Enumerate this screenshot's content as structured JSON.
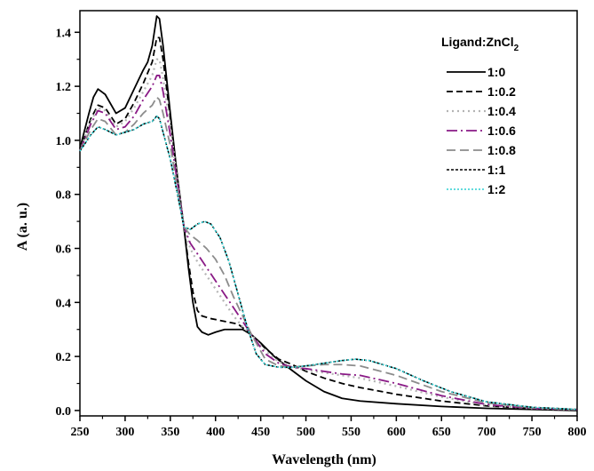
{
  "chart_data": {
    "type": "line",
    "title": "",
    "xlabel": "Wavelength (nm)",
    "ylabel": "A (a. u.)",
    "xlim": [
      250,
      800
    ],
    "ylim": [
      -0.02,
      1.48
    ],
    "xticks": [
      "250",
      "300",
      "350",
      "400",
      "450",
      "500",
      "550",
      "600",
      "650",
      "700",
      "750",
      "800"
    ],
    "yticks": [
      "0.0",
      "0.2",
      "0.4",
      "0.6",
      "0.8",
      "1.0",
      "1.2",
      "1.4"
    ],
    "grid": false,
    "legend_title_main": "Ligand:ZnCl",
    "legend_title_sub": "2",
    "legend_placement": "top-right",
    "series": [
      {
        "name": "1:0",
        "color": "#000000",
        "dash": "",
        "width": 1.8,
        "points": [
          [
            250,
            0.97
          ],
          [
            260,
            1.1
          ],
          [
            265,
            1.16
          ],
          [
            270,
            1.19
          ],
          [
            278,
            1.17
          ],
          [
            290,
            1.1
          ],
          [
            300,
            1.12
          ],
          [
            310,
            1.19
          ],
          [
            320,
            1.26
          ],
          [
            325,
            1.29
          ],
          [
            330,
            1.35
          ],
          [
            335,
            1.46
          ],
          [
            338,
            1.45
          ],
          [
            342,
            1.35
          ],
          [
            350,
            1.1
          ],
          [
            358,
            0.86
          ],
          [
            365,
            0.68
          ],
          [
            370,
            0.53
          ],
          [
            375,
            0.4
          ],
          [
            380,
            0.31
          ],
          [
            385,
            0.29
          ],
          [
            392,
            0.28
          ],
          [
            400,
            0.29
          ],
          [
            410,
            0.3
          ],
          [
            420,
            0.3
          ],
          [
            430,
            0.3
          ],
          [
            440,
            0.28
          ],
          [
            450,
            0.25
          ],
          [
            465,
            0.2
          ],
          [
            480,
            0.16
          ],
          [
            500,
            0.11
          ],
          [
            520,
            0.07
          ],
          [
            540,
            0.045
          ],
          [
            560,
            0.035
          ],
          [
            600,
            0.025
          ],
          [
            650,
            0.015
          ],
          [
            700,
            0.008
          ],
          [
            750,
            0.004
          ],
          [
            800,
            0.0
          ]
        ]
      },
      {
        "name": "1:0.2",
        "color": "#000000",
        "dash": "7,4",
        "width": 1.8,
        "points": [
          [
            250,
            0.96
          ],
          [
            262,
            1.08
          ],
          [
            270,
            1.13
          ],
          [
            278,
            1.12
          ],
          [
            290,
            1.06
          ],
          [
            300,
            1.08
          ],
          [
            310,
            1.14
          ],
          [
            320,
            1.21
          ],
          [
            330,
            1.29
          ],
          [
            335,
            1.38
          ],
          [
            338,
            1.38
          ],
          [
            342,
            1.3
          ],
          [
            350,
            1.08
          ],
          [
            358,
            0.86
          ],
          [
            365,
            0.68
          ],
          [
            370,
            0.55
          ],
          [
            375,
            0.44
          ],
          [
            380,
            0.37
          ],
          [
            385,
            0.35
          ],
          [
            395,
            0.34
          ],
          [
            410,
            0.33
          ],
          [
            425,
            0.32
          ],
          [
            440,
            0.28
          ],
          [
            455,
            0.23
          ],
          [
            470,
            0.19
          ],
          [
            485,
            0.17
          ],
          [
            500,
            0.145
          ],
          [
            520,
            0.12
          ],
          [
            540,
            0.1
          ],
          [
            560,
            0.085
          ],
          [
            600,
            0.06
          ],
          [
            650,
            0.035
          ],
          [
            700,
            0.017
          ],
          [
            750,
            0.007
          ],
          [
            800,
            0.003
          ]
        ]
      },
      {
        "name": "1:0.4",
        "color": "#b4b4b4",
        "dash": "2,4",
        "width": 2.2,
        "points": [
          [
            250,
            0.96
          ],
          [
            262,
            1.07
          ],
          [
            270,
            1.12
          ],
          [
            278,
            1.11
          ],
          [
            290,
            1.05
          ],
          [
            300,
            1.07
          ],
          [
            310,
            1.12
          ],
          [
            320,
            1.18
          ],
          [
            330,
            1.24
          ],
          [
            335,
            1.3
          ],
          [
            338,
            1.3
          ],
          [
            342,
            1.23
          ],
          [
            350,
            1.05
          ],
          [
            358,
            0.85
          ],
          [
            365,
            0.68
          ],
          [
            372,
            0.6
          ],
          [
            380,
            0.55
          ],
          [
            390,
            0.5
          ],
          [
            400,
            0.45
          ],
          [
            410,
            0.4
          ],
          [
            420,
            0.35
          ],
          [
            430,
            0.31
          ],
          [
            440,
            0.28
          ],
          [
            455,
            0.22
          ],
          [
            470,
            0.18
          ],
          [
            485,
            0.16
          ],
          [
            500,
            0.15
          ],
          [
            520,
            0.14
          ],
          [
            540,
            0.13
          ],
          [
            560,
            0.12
          ],
          [
            600,
            0.09
          ],
          [
            650,
            0.05
          ],
          [
            700,
            0.02
          ],
          [
            750,
            0.008
          ],
          [
            800,
            0.003
          ]
        ]
      },
      {
        "name": "1:0.6",
        "color": "#8a1a86",
        "dash": "12,4,2,4",
        "width": 1.8,
        "points": [
          [
            250,
            0.96
          ],
          [
            262,
            1.06
          ],
          [
            270,
            1.11
          ],
          [
            278,
            1.1
          ],
          [
            290,
            1.04
          ],
          [
            300,
            1.05
          ],
          [
            310,
            1.09
          ],
          [
            320,
            1.15
          ],
          [
            330,
            1.2
          ],
          [
            335,
            1.24
          ],
          [
            338,
            1.24
          ],
          [
            342,
            1.18
          ],
          [
            350,
            1.02
          ],
          [
            358,
            0.84
          ],
          [
            365,
            0.68
          ],
          [
            372,
            0.62
          ],
          [
            380,
            0.58
          ],
          [
            390,
            0.53
          ],
          [
            400,
            0.48
          ],
          [
            410,
            0.43
          ],
          [
            420,
            0.38
          ],
          [
            430,
            0.33
          ],
          [
            440,
            0.28
          ],
          [
            455,
            0.21
          ],
          [
            470,
            0.175
          ],
          [
            485,
            0.16
          ],
          [
            500,
            0.155
          ],
          [
            520,
            0.145
          ],
          [
            540,
            0.135
          ],
          [
            560,
            0.13
          ],
          [
            600,
            0.1
          ],
          [
            650,
            0.055
          ],
          [
            700,
            0.022
          ],
          [
            750,
            0.008
          ],
          [
            800,
            0.003
          ]
        ]
      },
      {
        "name": "1:0.8",
        "color": "#8c8c8c",
        "dash": "10,5",
        "width": 1.8,
        "points": [
          [
            250,
            0.96
          ],
          [
            262,
            1.04
          ],
          [
            270,
            1.08
          ],
          [
            278,
            1.07
          ],
          [
            290,
            1.02
          ],
          [
            300,
            1.03
          ],
          [
            310,
            1.06
          ],
          [
            320,
            1.1
          ],
          [
            330,
            1.13
          ],
          [
            335,
            1.16
          ],
          [
            338,
            1.15
          ],
          [
            342,
            1.1
          ],
          [
            350,
            0.98
          ],
          [
            358,
            0.82
          ],
          [
            365,
            0.68
          ],
          [
            372,
            0.65
          ],
          [
            380,
            0.63
          ],
          [
            390,
            0.6
          ],
          [
            400,
            0.56
          ],
          [
            410,
            0.5
          ],
          [
            420,
            0.42
          ],
          [
            430,
            0.35
          ],
          [
            440,
            0.28
          ],
          [
            455,
            0.19
          ],
          [
            470,
            0.165
          ],
          [
            485,
            0.16
          ],
          [
            500,
            0.165
          ],
          [
            520,
            0.17
          ],
          [
            540,
            0.17
          ],
          [
            560,
            0.165
          ],
          [
            600,
            0.13
          ],
          [
            650,
            0.07
          ],
          [
            700,
            0.028
          ],
          [
            750,
            0.01
          ],
          [
            800,
            0.003
          ]
        ]
      },
      {
        "name": "1:1",
        "color": "#000000",
        "dash": "3,2",
        "width": 1.6,
        "points": [
          [
            250,
            0.96
          ],
          [
            262,
            1.02
          ],
          [
            270,
            1.05
          ],
          [
            278,
            1.04
          ],
          [
            290,
            1.02
          ],
          [
            300,
            1.03
          ],
          [
            310,
            1.04
          ],
          [
            320,
            1.06
          ],
          [
            330,
            1.07
          ],
          [
            335,
            1.09
          ],
          [
            338,
            1.08
          ],
          [
            342,
            1.03
          ],
          [
            350,
            0.93
          ],
          [
            358,
            0.8
          ],
          [
            365,
            0.68
          ],
          [
            372,
            0.67
          ],
          [
            380,
            0.69
          ],
          [
            388,
            0.7
          ],
          [
            395,
            0.69
          ],
          [
            405,
            0.64
          ],
          [
            415,
            0.55
          ],
          [
            425,
            0.43
          ],
          [
            435,
            0.31
          ],
          [
            445,
            0.21
          ],
          [
            455,
            0.17
          ],
          [
            470,
            0.16
          ],
          [
            485,
            0.16
          ],
          [
            500,
            0.165
          ],
          [
            520,
            0.175
          ],
          [
            540,
            0.185
          ],
          [
            555,
            0.19
          ],
          [
            570,
            0.185
          ],
          [
            600,
            0.155
          ],
          [
            630,
            0.11
          ],
          [
            660,
            0.07
          ],
          [
            700,
            0.032
          ],
          [
            750,
            0.012
          ],
          [
            800,
            0.004
          ]
        ]
      },
      {
        "name": "1:2",
        "color": "#2ecfd2",
        "dash": "2,2",
        "width": 1.6,
        "points": [
          [
            250,
            0.96
          ],
          [
            262,
            1.02
          ],
          [
            270,
            1.05
          ],
          [
            278,
            1.04
          ],
          [
            290,
            1.02
          ],
          [
            300,
            1.03
          ],
          [
            310,
            1.04
          ],
          [
            320,
            1.06
          ],
          [
            330,
            1.07
          ],
          [
            335,
            1.09
          ],
          [
            338,
            1.08
          ],
          [
            342,
            1.03
          ],
          [
            350,
            0.93
          ],
          [
            358,
            0.8
          ],
          [
            365,
            0.68
          ],
          [
            372,
            0.67
          ],
          [
            380,
            0.69
          ],
          [
            388,
            0.7
          ],
          [
            395,
            0.69
          ],
          [
            405,
            0.64
          ],
          [
            415,
            0.55
          ],
          [
            425,
            0.43
          ],
          [
            435,
            0.31
          ],
          [
            445,
            0.21
          ],
          [
            455,
            0.17
          ],
          [
            470,
            0.16
          ],
          [
            485,
            0.16
          ],
          [
            500,
            0.165
          ],
          [
            520,
            0.175
          ],
          [
            540,
            0.185
          ],
          [
            555,
            0.19
          ],
          [
            570,
            0.185
          ],
          [
            600,
            0.155
          ],
          [
            630,
            0.11
          ],
          [
            660,
            0.07
          ],
          [
            700,
            0.032
          ],
          [
            750,
            0.012
          ],
          [
            800,
            0.004
          ]
        ]
      }
    ]
  }
}
